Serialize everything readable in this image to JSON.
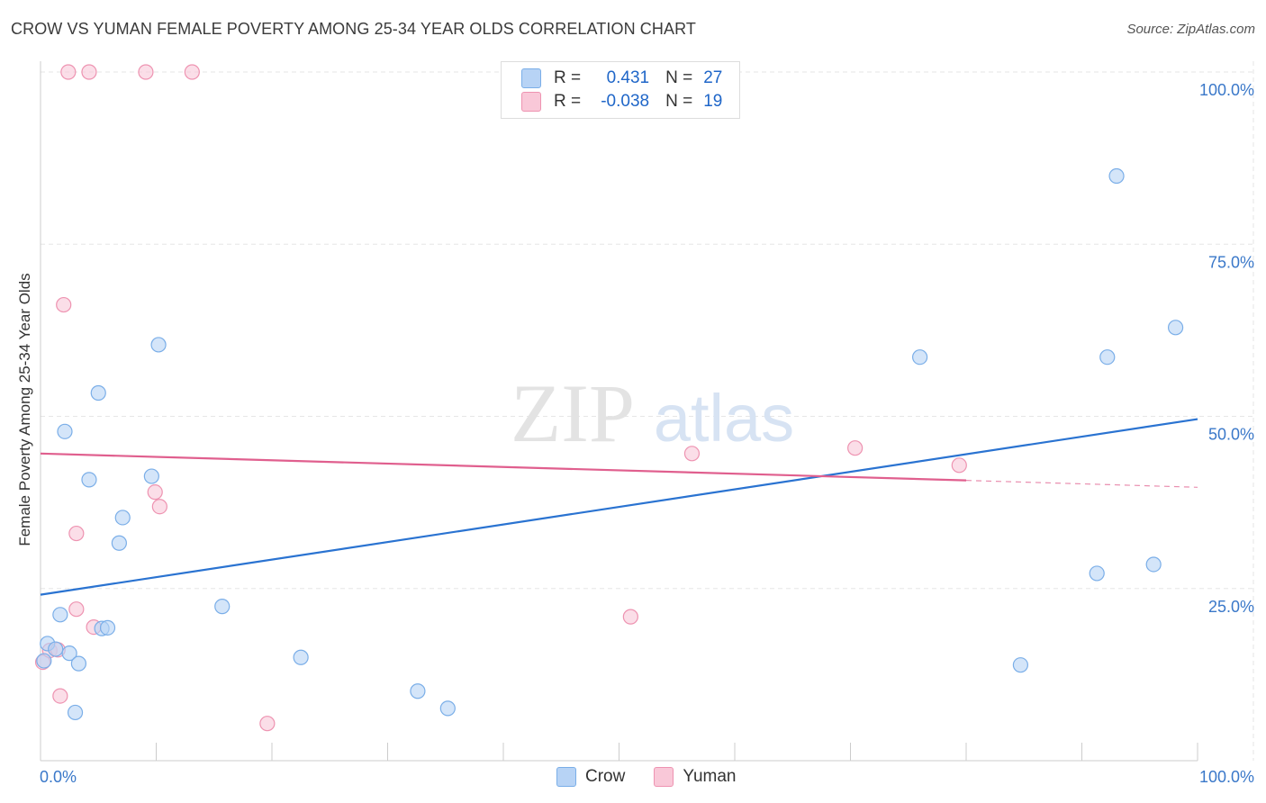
{
  "title": "CROW VS YUMAN FEMALE POVERTY AMONG 25-34 YEAR OLDS CORRELATION CHART",
  "source": "Source: ZipAtlas.com",
  "watermark": {
    "zip": "ZIP",
    "atlas": "atlas"
  },
  "legend": {
    "crow": {
      "r_label": "R =",
      "r_value": "0.431",
      "n_label": "N =",
      "n_value": "27"
    },
    "yuman": {
      "r_label": "R =",
      "r_value": "-0.038",
      "n_label": "N =",
      "n_value": "19"
    }
  },
  "colors": {
    "crow_fill": "#b7d3f5",
    "crow_stroke": "#7aaee8",
    "crow_line": "#2a73d1",
    "yuman_fill": "#f9c8d8",
    "yuman_stroke": "#ee93b1",
    "yuman_line": "#e05f8e",
    "tick_text": "#3a78c9",
    "grid": "#e6e6e6"
  },
  "chart_data": {
    "type": "scatter",
    "title": "CROW VS YUMAN FEMALE POVERTY AMONG 25-34 YEAR OLDS CORRELATION CHART",
    "xlabel": "",
    "ylabel": "Female Poverty Among 25-34 Year Olds",
    "xlim": [
      0,
      100
    ],
    "ylim": [
      0,
      100
    ],
    "x_tick_labels": [
      "0.0%",
      "100.0%"
    ],
    "y_ticks": [
      25,
      50,
      75,
      100
    ],
    "y_tick_labels": [
      "25.0%",
      "50.0%",
      "75.0%",
      "100.0%"
    ],
    "legend_position": "bottom-center",
    "series": [
      {
        "name": "Crow",
        "points": [
          [
            0.3,
            14.5
          ],
          [
            0.6,
            17.0
          ],
          [
            1.3,
            16.2
          ],
          [
            1.7,
            21.2
          ],
          [
            2.1,
            47.8
          ],
          [
            2.5,
            15.6
          ],
          [
            3.0,
            7.0
          ],
          [
            3.3,
            14.1
          ],
          [
            4.2,
            40.8
          ],
          [
            5.0,
            53.4
          ],
          [
            5.3,
            19.2
          ],
          [
            5.8,
            19.3
          ],
          [
            7.1,
            35.3
          ],
          [
            6.8,
            31.6
          ],
          [
            9.6,
            41.3
          ],
          [
            10.2,
            60.4
          ],
          [
            15.7,
            22.4
          ],
          [
            22.5,
            15.0
          ],
          [
            32.6,
            10.1
          ],
          [
            35.2,
            7.6
          ],
          [
            76.0,
            58.6
          ],
          [
            92.2,
            58.6
          ],
          [
            84.7,
            13.9
          ],
          [
            96.2,
            28.5
          ],
          [
            98.1,
            62.9
          ],
          [
            91.3,
            27.2
          ],
          [
            93.0,
            84.9
          ]
        ],
        "trend": {
          "x": [
            0,
            100
          ],
          "y": [
            24.1,
            49.6
          ]
        }
      },
      {
        "name": "Yuman",
        "points": [
          [
            0.2,
            14.3
          ],
          [
            0.8,
            16.0
          ],
          [
            1.5,
            16.1
          ],
          [
            1.7,
            9.4
          ],
          [
            2.0,
            66.2
          ],
          [
            3.1,
            33.0
          ],
          [
            3.1,
            22.0
          ],
          [
            4.6,
            19.4
          ],
          [
            9.9,
            39.0
          ],
          [
            10.3,
            36.9
          ],
          [
            2.4,
            100.0
          ],
          [
            4.2,
            100.0
          ],
          [
            9.1,
            100.0
          ],
          [
            13.1,
            100.0
          ],
          [
            19.6,
            5.4
          ],
          [
            51.0,
            20.9
          ],
          [
            56.3,
            44.6
          ],
          [
            70.4,
            45.4
          ],
          [
            79.4,
            42.9
          ]
        ],
        "trend": {
          "x": [
            0,
            80
          ],
          "y": [
            44.6,
            40.7
          ]
        },
        "trend_extension": {
          "x": [
            80,
            100
          ],
          "y": [
            40.7,
            39.7
          ]
        }
      }
    ]
  },
  "bottom_legend": [
    "Crow",
    "Yuman"
  ]
}
